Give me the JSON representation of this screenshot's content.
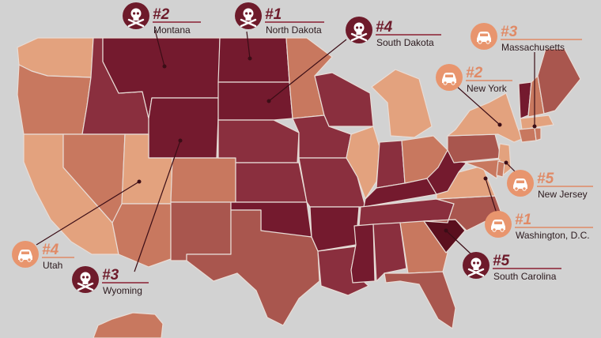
{
  "colors": {
    "background": "#d2d2d2",
    "darkest": "#741a2e",
    "dark": "#8a2f3e",
    "medium": "#a9564e",
    "light": "#c8785f",
    "lightest": "#e3a27e",
    "marker_dark": "#6e1b2b",
    "marker_light": "#e8956e"
  },
  "callouts": [
    {
      "id": "montana",
      "rank": "#2",
      "name": "Montana",
      "kind": "dangerous",
      "icon": "skull-crossbones-icon"
    },
    {
      "id": "north-dakota",
      "rank": "#1",
      "name": "North Dakota",
      "kind": "dangerous",
      "icon": "skull-crossbones-icon"
    },
    {
      "id": "south-dakota",
      "rank": "#4",
      "name": "South Dakota",
      "kind": "dangerous",
      "icon": "skull-crossbones-icon"
    },
    {
      "id": "wyoming",
      "rank": "#3",
      "name": "Wyoming",
      "kind": "dangerous",
      "icon": "skull-crossbones-icon"
    },
    {
      "id": "south-carolina",
      "rank": "#5",
      "name": "South Carolina",
      "kind": "dangerous",
      "icon": "skull-crossbones-icon"
    },
    {
      "id": "massachusetts",
      "rank": "#3",
      "name": "Massachusetts",
      "kind": "safe",
      "icon": "car-icon"
    },
    {
      "id": "new-york",
      "rank": "#2",
      "name": "New York",
      "kind": "safe",
      "icon": "car-icon"
    },
    {
      "id": "new-jersey",
      "rank": "#5",
      "name": "New Jersey",
      "kind": "safe",
      "icon": "car-icon"
    },
    {
      "id": "washington-dc",
      "rank": "#1",
      "name": "Washington, D.C.",
      "kind": "safe",
      "icon": "car-icon"
    },
    {
      "id": "utah",
      "rank": "#4",
      "name": "Utah",
      "kind": "safe",
      "icon": "car-icon"
    }
  ]
}
